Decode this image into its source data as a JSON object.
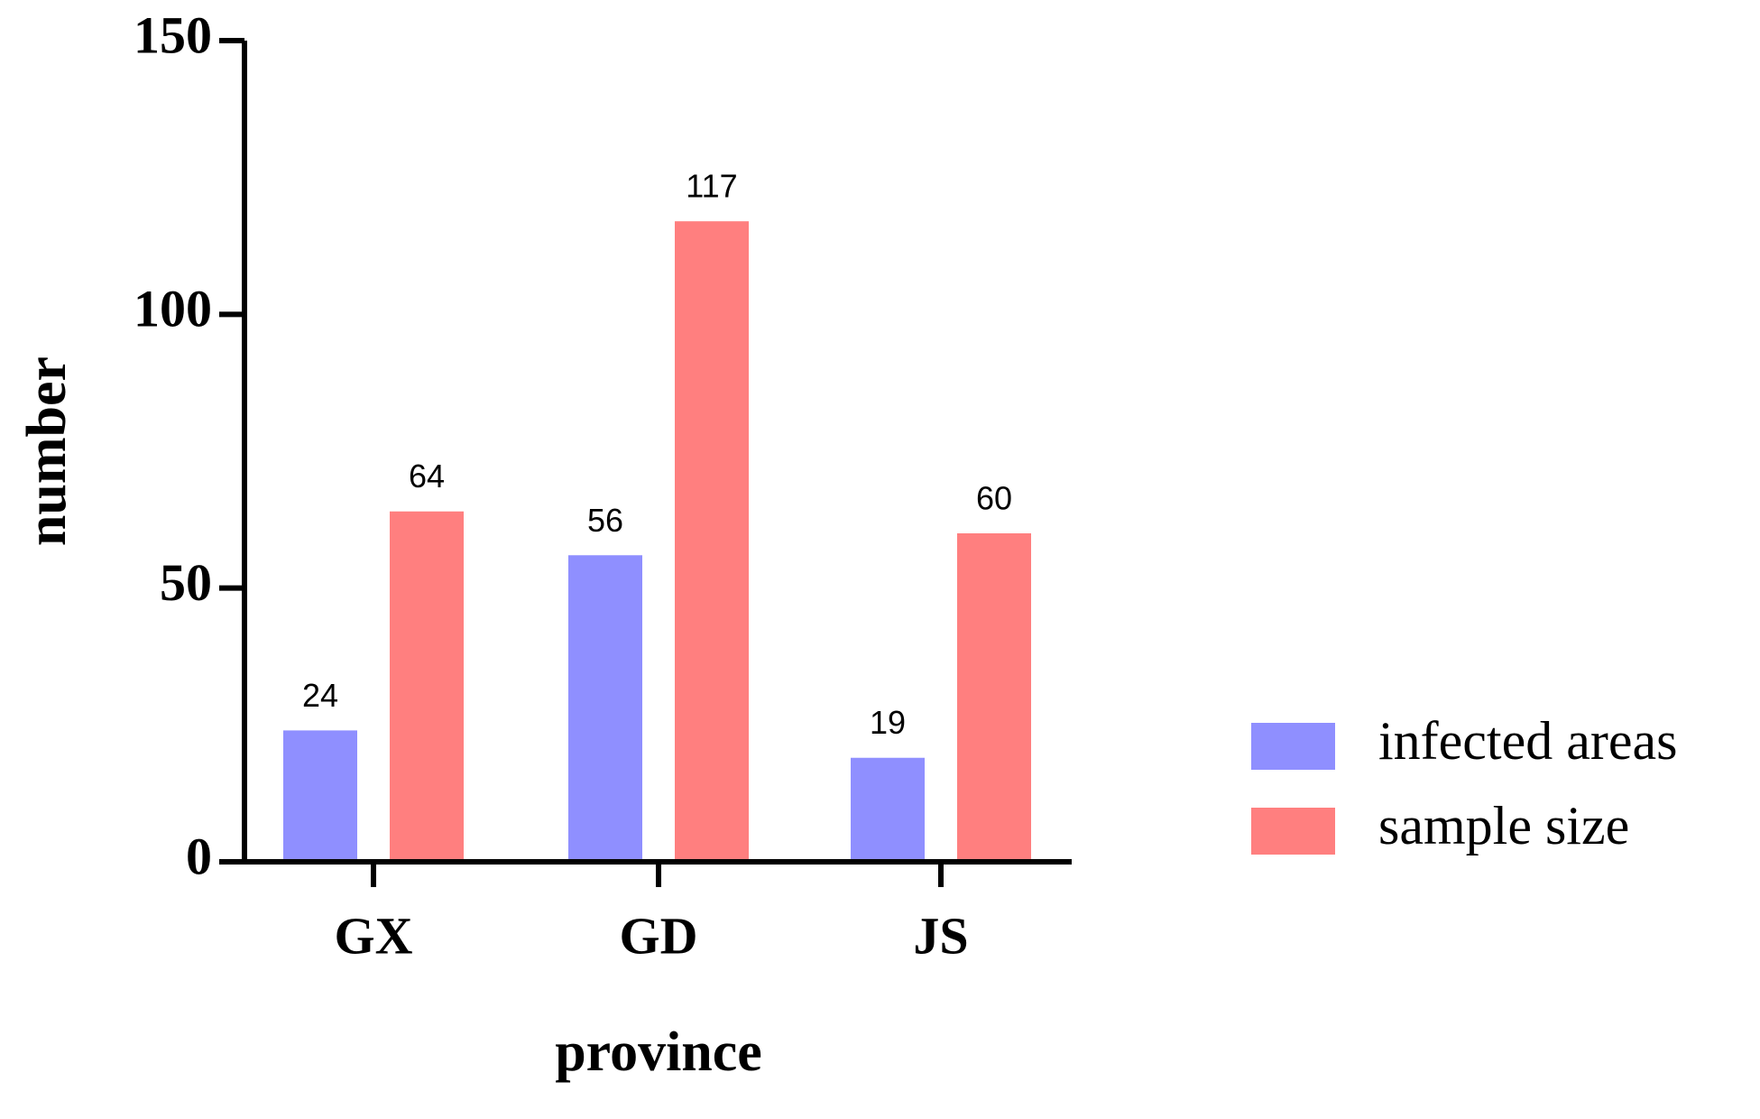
{
  "chart_data": {
    "type": "bar",
    "x_label": "province",
    "y_label": "number",
    "categories": [
      "GX",
      "GD",
      "JS"
    ],
    "series": [
      {
        "name": "infected areas",
        "color": "#8f8fff",
        "values": [
          24,
          56,
          19
        ]
      },
      {
        "name": "sample size",
        "color": "#ff7f7f",
        "values": [
          64,
          117,
          60
        ]
      }
    ],
    "ylim": [
      0,
      150
    ],
    "yticks": [
      0,
      50,
      100,
      150
    ],
    "grid": false,
    "legend": "right"
  }
}
